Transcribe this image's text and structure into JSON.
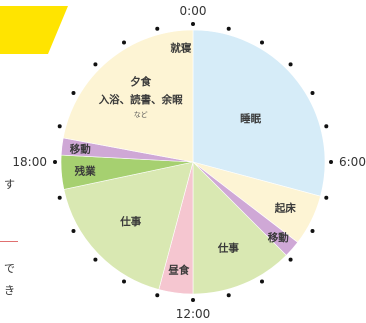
{
  "left_text": {
    "line1": "す",
    "line2": "で",
    "line3": "き"
  },
  "colors": {
    "banner": "#ffe400",
    "sleep": "#d6ecf8",
    "wake": "#fdf4d4",
    "move": "#cfa8d6",
    "work": "#d9e8b2",
    "lunch": "#f5c6d0",
    "overtime": "#a6d070",
    "evening": "#fdf4d4",
    "tick": "#111111"
  },
  "chart_data": {
    "type": "pie",
    "clock_hours": 24,
    "time_labels": [
      {
        "hour": 0,
        "text": "0:00"
      },
      {
        "hour": 6,
        "text": "6:00"
      },
      {
        "hour": 12,
        "text": "12:00"
      },
      {
        "hour": 18,
        "text": "18:00"
      }
    ],
    "segments": [
      {
        "name": "睡眠",
        "start": 0,
        "end": 7,
        "color_key": "sleep"
      },
      {
        "name": "起床",
        "start": 7,
        "end": 8.5,
        "color_key": "wake"
      },
      {
        "name": "移動",
        "start": 8.5,
        "end": 9,
        "color_key": "move"
      },
      {
        "name": "仕事",
        "start": 9,
        "end": 12,
        "color_key": "work"
      },
      {
        "name": "昼食",
        "start": 12,
        "end": 13,
        "color_key": "lunch"
      },
      {
        "name": "仕事",
        "start": 13,
        "end": 17.2,
        "color_key": "work"
      },
      {
        "name": "残業",
        "start": 17.2,
        "end": 18.2,
        "color_key": "overtime"
      },
      {
        "name": "移動",
        "start": 18.2,
        "end": 18.7,
        "color_key": "move"
      },
      {
        "name": "夕食",
        "sub1": "入浴、読書、余暇",
        "sub2": "など",
        "start": 18.7,
        "end": 24,
        "color_key": "evening"
      }
    ],
    "center_top_label": "就寝"
  }
}
